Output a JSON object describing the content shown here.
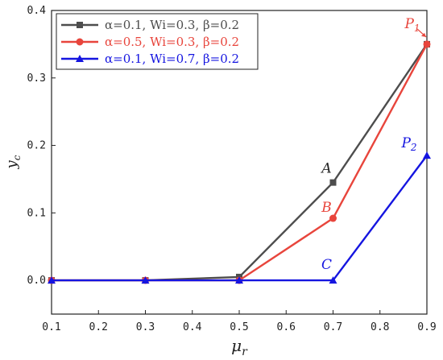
{
  "chart_data": {
    "type": "line",
    "xlabel": "μr",
    "ylabel": "yc",
    "xlim": [
      0.1,
      0.9
    ],
    "ylim": [
      -0.05,
      0.4
    ],
    "x_ticks": [
      "0.1",
      "0.2",
      "0.3",
      "0.4",
      "0.5",
      "0.6",
      "0.7",
      "0.8",
      "0.9"
    ],
    "y_ticks": [
      "0.0",
      "0.1",
      "0.2",
      "0.3",
      "0.4"
    ],
    "legend_position": "top-left",
    "series": [
      {
        "name": "α=0.1, Wi=0.3, β=0.2",
        "color": "#4d4d4d",
        "marker": "square",
        "x": [
          0.1,
          0.3,
          0.5,
          0.7,
          0.9
        ],
        "y": [
          0.0,
          0.0,
          0.005,
          0.145,
          0.35
        ]
      },
      {
        "name": "α=0.5, Wi=0.3, β=0.2",
        "color": "#e8453c",
        "marker": "circle",
        "x": [
          0.1,
          0.3,
          0.5,
          0.7,
          0.9
        ],
        "y": [
          0.0,
          0.0,
          0.0,
          0.092,
          0.35
        ]
      },
      {
        "name": "α=0.1, Wi=0.7, β=0.2",
        "color": "#1515e0",
        "marker": "triangle",
        "x": [
          0.1,
          0.3,
          0.5,
          0.7,
          0.9
        ],
        "y": [
          0.0,
          0.0,
          0.0,
          0.0,
          0.185
        ]
      }
    ],
    "annotations": [
      {
        "text": "A",
        "x": 0.7,
        "y": 0.145,
        "color": "#222222"
      },
      {
        "text": "B",
        "x": 0.7,
        "y": 0.092,
        "color": "#e8453c"
      },
      {
        "text": "C",
        "x": 0.7,
        "y": 0.0,
        "color": "#1515e0"
      },
      {
        "text": "P",
        "sub": "1",
        "x": 0.9,
        "y": 0.35,
        "color": "#e8453c"
      },
      {
        "text": "P",
        "sub": "2",
        "x": 0.9,
        "y": 0.185,
        "color": "#1515e0"
      }
    ]
  }
}
